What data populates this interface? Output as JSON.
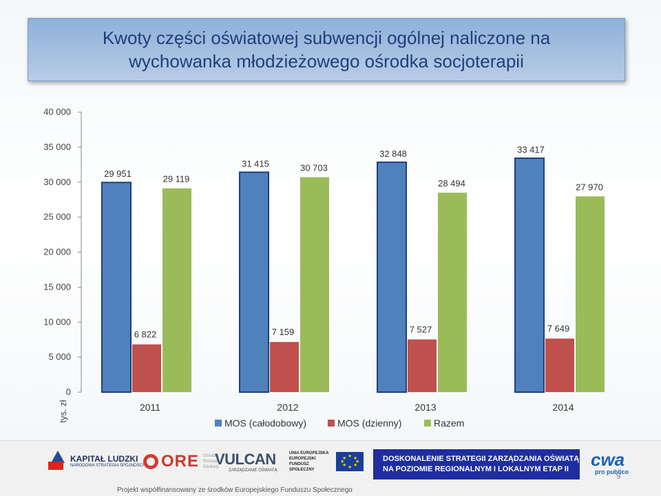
{
  "title": "Kwoty części oświatowej subwencji ogólnej naliczone na wychowanka młodzieżowego ośrodka socjoterapii",
  "chart_data": {
    "type": "bar",
    "categories": [
      "2011",
      "2012",
      "2013",
      "2014"
    ],
    "series": [
      {
        "name": "MOS (całodobowy)",
        "values": [
          29951,
          31415,
          32848,
          33417
        ],
        "labels": [
          "29 951",
          "31 415",
          "32 848",
          "33 417"
        ],
        "color": "#4f81bd"
      },
      {
        "name": "MOS (dzienny)",
        "values": [
          6822,
          7159,
          7527,
          7649
        ],
        "labels": [
          "6 822",
          "7 159",
          "7 527",
          "7 649"
        ],
        "color": "#c0504d"
      },
      {
        "name": "Razem",
        "values": [
          29119,
          30703,
          28494,
          27970
        ],
        "labels": [
          "29 119",
          "30 703",
          "28 494",
          "27 970"
        ],
        "color": "#9bbb59"
      }
    ],
    "ylabel": "tys. zł",
    "ylim": [
      0,
      40000
    ],
    "yticks": [
      0,
      5000,
      10000,
      15000,
      20000,
      25000,
      30000,
      35000,
      40000
    ],
    "ytick_labels": [
      "0",
      "5 000",
      "10 000",
      "15 000",
      "20 000",
      "25 000",
      "30 000",
      "35 000",
      "40 000"
    ],
    "legend_position": "bottom",
    "grid": false
  },
  "footer": {
    "kapital_ludzki": "KAPITAŁ LUDZKI",
    "kapital_sub": "NARODOWA STRATEGIA SPÓJNOŚCI",
    "ore": "ORE",
    "ore_sub": "Ośrodek Rozwoju Edukacji",
    "vulcan": "VULCAN",
    "vulcan_sub": "ZARZĄDZANIE OŚWIATĄ",
    "ue_text": "UNIA EUROPEJSKA EUROPEJSKI FUNDUSZ SPOŁECZNY",
    "banner_line1": "DOSKONALENIE STRATEGII ZARZĄDZANIA OŚWIATĄ",
    "banner_line2": "NA POZIOMIE REGIONALNYM I LOKALNYM ETAP II",
    "cwa": "cwa",
    "cwa_sub": "pro publico",
    "page_number": "9",
    "project_note": "Projekt współfinansowany ze środków Europejskiego Funduszu Społecznego"
  }
}
